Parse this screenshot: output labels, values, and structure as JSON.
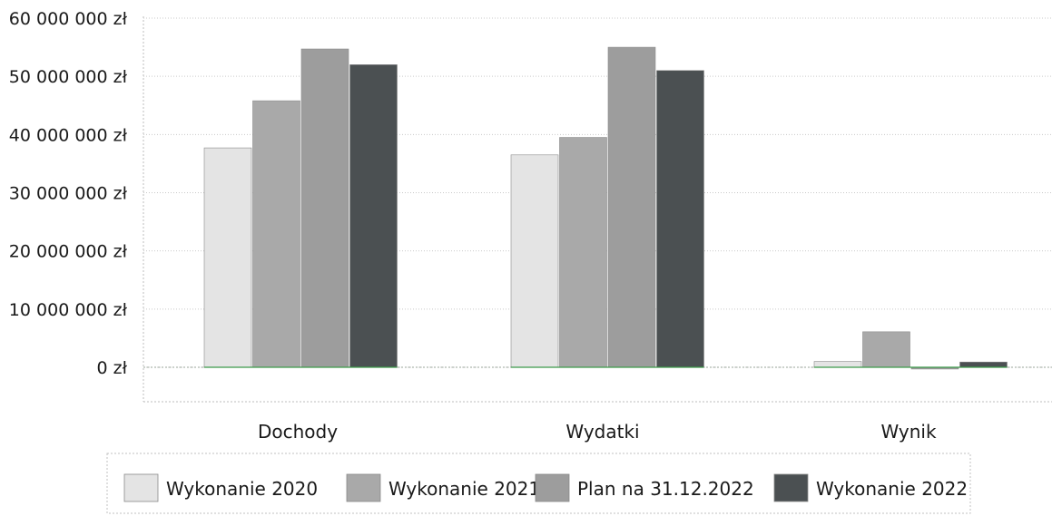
{
  "chart_data": {
    "type": "bar",
    "title": "",
    "xlabel": "",
    "ylabel": "",
    "categories": [
      "Dochody",
      "Wydatki",
      "Wynik"
    ],
    "series": [
      {
        "name": "Wykonanie 2020",
        "color": "#e4e4e4",
        "values": [
          37700000,
          36500000,
          1000000
        ]
      },
      {
        "name": "Wykonanie 2021",
        "color": "#a9a9a9",
        "values": [
          45800000,
          39500000,
          6100000
        ]
      },
      {
        "name": "Plan na 31.12.2022",
        "color": "#9d9d9d",
        "values": [
          54700000,
          55000000,
          -300000
        ]
      },
      {
        "name": "Wykonanie 2022",
        "color": "#4b5052",
        "values": [
          52000000,
          51000000,
          900000
        ]
      }
    ],
    "ylim": [
      0,
      60000000
    ],
    "yticks": [
      0,
      10000000,
      20000000,
      30000000,
      40000000,
      50000000,
      60000000
    ],
    "ytick_labels": [
      "0 zł",
      "10 000 000 zł",
      "20 000 000 zł",
      "30 000 000 zł",
      "40 000 000 zł",
      "50 000 000 zł",
      "60 000 000 zł"
    ],
    "grid": true,
    "legend_position": "bottom"
  }
}
